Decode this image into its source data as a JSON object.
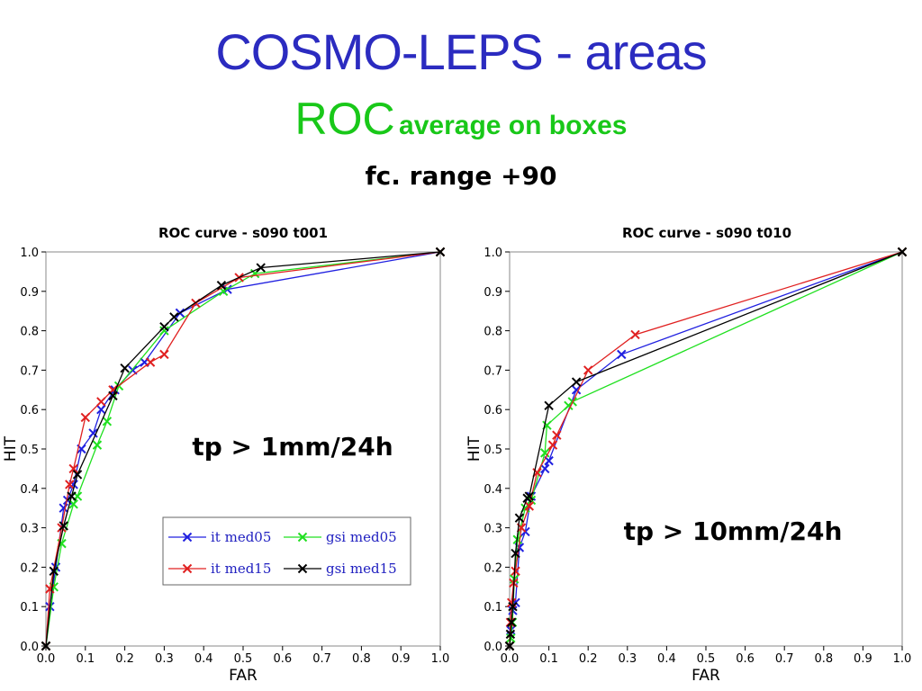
{
  "slide": {
    "title": "COSMO-LEPS  -  areas",
    "subtitle_main": "ROC",
    "subtitle_small": "average on boxes",
    "range": "fc. range +90"
  },
  "colors": {
    "title": "#2b2bc0",
    "subtitle": "#19c819",
    "it_med05": "#2020e0",
    "gsi_med05": "#20e020",
    "it_med15": "#e02020",
    "gsi_med15": "#000000"
  },
  "chart_data": [
    {
      "type": "line",
      "title": "ROC curve - s090 t001",
      "xlabel": "FAR",
      "ylabel": "HIT",
      "xlim": [
        0,
        1
      ],
      "ylim": [
        0,
        1
      ],
      "xticks": [
        "0.0",
        "0.1",
        "0.2",
        "0.3",
        "0.4",
        "0.5",
        "0.6",
        "0.7",
        "0.8",
        "0.9",
        "1.0"
      ],
      "yticks": [
        "0.0",
        "0.1",
        "0.2",
        "0.3",
        "0.4",
        "0.5",
        "0.6",
        "0.7",
        "0.8",
        "0.9",
        "1.0"
      ],
      "annotation": "tp > 1mm/24h",
      "legend": {
        "position": "lower-right",
        "labels": [
          "it med05",
          "gsi med05",
          "it med15",
          "gsi med15"
        ]
      },
      "series": [
        {
          "name": "it med05",
          "color": "#2020e0",
          "x": [
            0.0,
            0.01,
            0.025,
            0.045,
            0.055,
            0.07,
            0.09,
            0.12,
            0.14,
            0.175,
            0.22,
            0.25,
            0.34,
            0.46,
            1.0
          ],
          "y": [
            0.0,
            0.1,
            0.2,
            0.35,
            0.37,
            0.41,
            0.5,
            0.54,
            0.6,
            0.65,
            0.7,
            0.72,
            0.845,
            0.905,
            1.0
          ]
        },
        {
          "name": "gsi med05",
          "color": "#20e020",
          "x": [
            0.0,
            0.02,
            0.04,
            0.07,
            0.08,
            0.13,
            0.155,
            0.185,
            0.3,
            0.45,
            0.53,
            1.0
          ],
          "y": [
            0.0,
            0.15,
            0.26,
            0.36,
            0.38,
            0.51,
            0.57,
            0.66,
            0.8,
            0.9,
            0.945,
            1.0
          ]
        },
        {
          "name": "it med15",
          "color": "#e02020",
          "x": [
            0.0,
            0.01,
            0.04,
            0.06,
            0.07,
            0.1,
            0.14,
            0.17,
            0.265,
            0.3,
            0.38,
            0.49,
            1.0
          ],
          "y": [
            0.0,
            0.145,
            0.3,
            0.41,
            0.45,
            0.58,
            0.62,
            0.65,
            0.72,
            0.74,
            0.87,
            0.935,
            1.0
          ]
        },
        {
          "name": "gsi med15",
          "color": "#000000",
          "x": [
            0.0,
            0.02,
            0.045,
            0.065,
            0.08,
            0.17,
            0.2,
            0.3,
            0.325,
            0.445,
            0.545,
            1.0
          ],
          "y": [
            0.0,
            0.19,
            0.305,
            0.38,
            0.435,
            0.635,
            0.705,
            0.81,
            0.835,
            0.915,
            0.96,
            1.0
          ]
        }
      ]
    },
    {
      "type": "line",
      "title": "ROC curve - s090 t010",
      "xlabel": "FAR",
      "ylabel": "HIT",
      "xlim": [
        0,
        1
      ],
      "ylim": [
        0,
        1
      ],
      "xticks": [
        "0.0",
        "0.1",
        "0.2",
        "0.3",
        "0.4",
        "0.5",
        "0.6",
        "0.7",
        "0.8",
        "0.9",
        "1.0"
      ],
      "yticks": [
        "0.0",
        "0.1",
        "0.2",
        "0.3",
        "0.4",
        "0.5",
        "0.6",
        "0.7",
        "0.8",
        "0.9",
        "1.0"
      ],
      "annotation": "tp > 10mm/24h",
      "series": [
        {
          "name": "it med05",
          "color": "#2020e0",
          "x": [
            0.0,
            0.003,
            0.008,
            0.015,
            0.025,
            0.04,
            0.055,
            0.09,
            0.1,
            0.17,
            0.285,
            1.0
          ],
          "y": [
            0.0,
            0.04,
            0.09,
            0.11,
            0.25,
            0.29,
            0.38,
            0.45,
            0.47,
            0.65,
            0.74,
            1.0
          ]
        },
        {
          "name": "gsi med05",
          "color": "#20e020",
          "x": [
            0.0,
            0.003,
            0.007,
            0.012,
            0.02,
            0.04,
            0.055,
            0.09,
            0.095,
            0.15,
            0.16,
            1.0
          ],
          "y": [
            0.0,
            0.02,
            0.06,
            0.17,
            0.27,
            0.35,
            0.37,
            0.49,
            0.56,
            0.61,
            0.62,
            1.0
          ]
        },
        {
          "name": "it med15",
          "color": "#e02020",
          "x": [
            0.0,
            0.002,
            0.005,
            0.01,
            0.015,
            0.03,
            0.05,
            0.07,
            0.11,
            0.12,
            0.2,
            0.32,
            1.0
          ],
          "y": [
            0.0,
            0.06,
            0.11,
            0.16,
            0.19,
            0.3,
            0.355,
            0.44,
            0.51,
            0.535,
            0.7,
            0.79,
            1.0
          ]
        },
        {
          "name": "gsi med15",
          "color": "#000000",
          "x": [
            0.0,
            0.002,
            0.005,
            0.008,
            0.015,
            0.025,
            0.045,
            0.05,
            0.1,
            0.17,
            1.0
          ],
          "y": [
            0.0,
            0.03,
            0.06,
            0.1,
            0.235,
            0.325,
            0.375,
            0.38,
            0.61,
            0.67,
            1.0
          ]
        }
      ]
    }
  ]
}
